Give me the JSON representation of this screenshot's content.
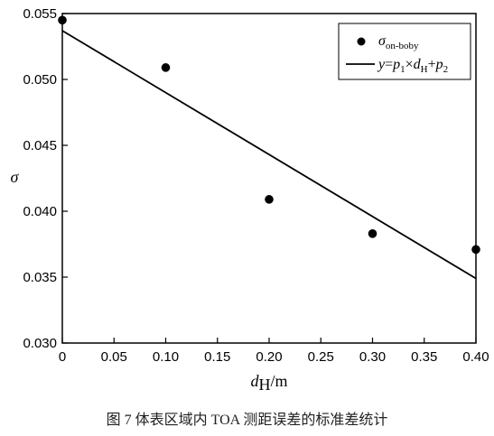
{
  "chart_data": {
    "type": "scatter",
    "x": [
      0,
      0.1,
      0.2,
      0.3,
      0.4
    ],
    "y": [
      0.0545,
      0.0509,
      0.0409,
      0.0383,
      0.0371
    ],
    "fit_line": {
      "x": [
        0,
        0.4
      ],
      "y": [
        0.0537,
        0.0349
      ]
    },
    "xlim": [
      0,
      0.4
    ],
    "ylim": [
      0.03,
      0.055
    ],
    "xticks": [
      "0",
      "0.05",
      "0.10",
      "0.15",
      "0.20",
      "0.25",
      "0.30",
      "0.35",
      "0.40"
    ],
    "yticks": [
      "0.030",
      "0.035",
      "0.040",
      "0.045",
      "0.050",
      "0.055"
    ],
    "xlabel": {
      "var": "d",
      "sub": "H",
      "unit": "/m"
    },
    "ylabel": "σ",
    "legend": {
      "position": "top-right",
      "points_label": {
        "var": "σ",
        "sub": "on-boby"
      },
      "line_label": {
        "y": "y",
        "eq": "=",
        "p1": "p",
        "p1sub": "1",
        "times": "×",
        "d": "d",
        "dsub": "H",
        "plus": "+",
        "p2": "p",
        "p2sub": "2"
      }
    },
    "colors": {
      "marker": "#000000",
      "line": "#000000"
    }
  },
  "caption": "图 7   体表区域内 TOA 测距误差的标准差统计"
}
